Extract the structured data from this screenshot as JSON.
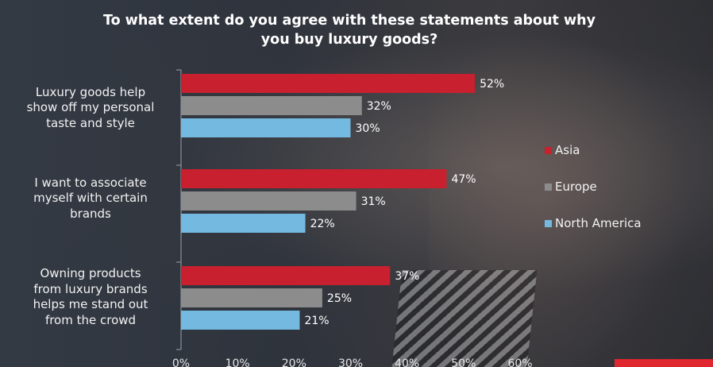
{
  "chart_data": {
    "type": "bar",
    "orientation": "horizontal",
    "title": "To what extent do you agree with these statements about why you buy luxury goods?",
    "title_lines": [
      "To what extent do you agree with these statements about why",
      "you buy luxury goods?"
    ],
    "categories": [
      [
        "Luxury goods help",
        "show off my personal",
        "taste and style"
      ],
      [
        "I want to associate",
        "myself with certain",
        "brands"
      ],
      [
        "Owning products",
        "from luxury brands",
        "helps me stand out",
        "from the crowd"
      ]
    ],
    "series": [
      {
        "name": "Asia",
        "color": "#c8202e",
        "values": [
          52,
          47,
          37
        ],
        "labels": [
          "52%",
          "47%",
          "37%"
        ]
      },
      {
        "name": "Europe",
        "color": "#8c8c8c",
        "values": [
          32,
          31,
          25
        ],
        "labels": [
          "32%",
          "31%",
          "25%"
        ]
      },
      {
        "name": "North America",
        "color": "#74b9e0",
        "values": [
          30,
          22,
          21
        ],
        "labels": [
          "30%",
          "22%",
          "21%"
        ]
      }
    ],
    "xlim": [
      0,
      60
    ],
    "xticks": [
      0,
      10,
      20,
      30,
      40,
      50,
      60
    ],
    "xtick_labels": [
      "0%",
      "10%",
      "20%",
      "30%",
      "40%",
      "50%",
      "60%"
    ],
    "grid": false,
    "legend_position": "right"
  },
  "accent_color": "#e0262f"
}
